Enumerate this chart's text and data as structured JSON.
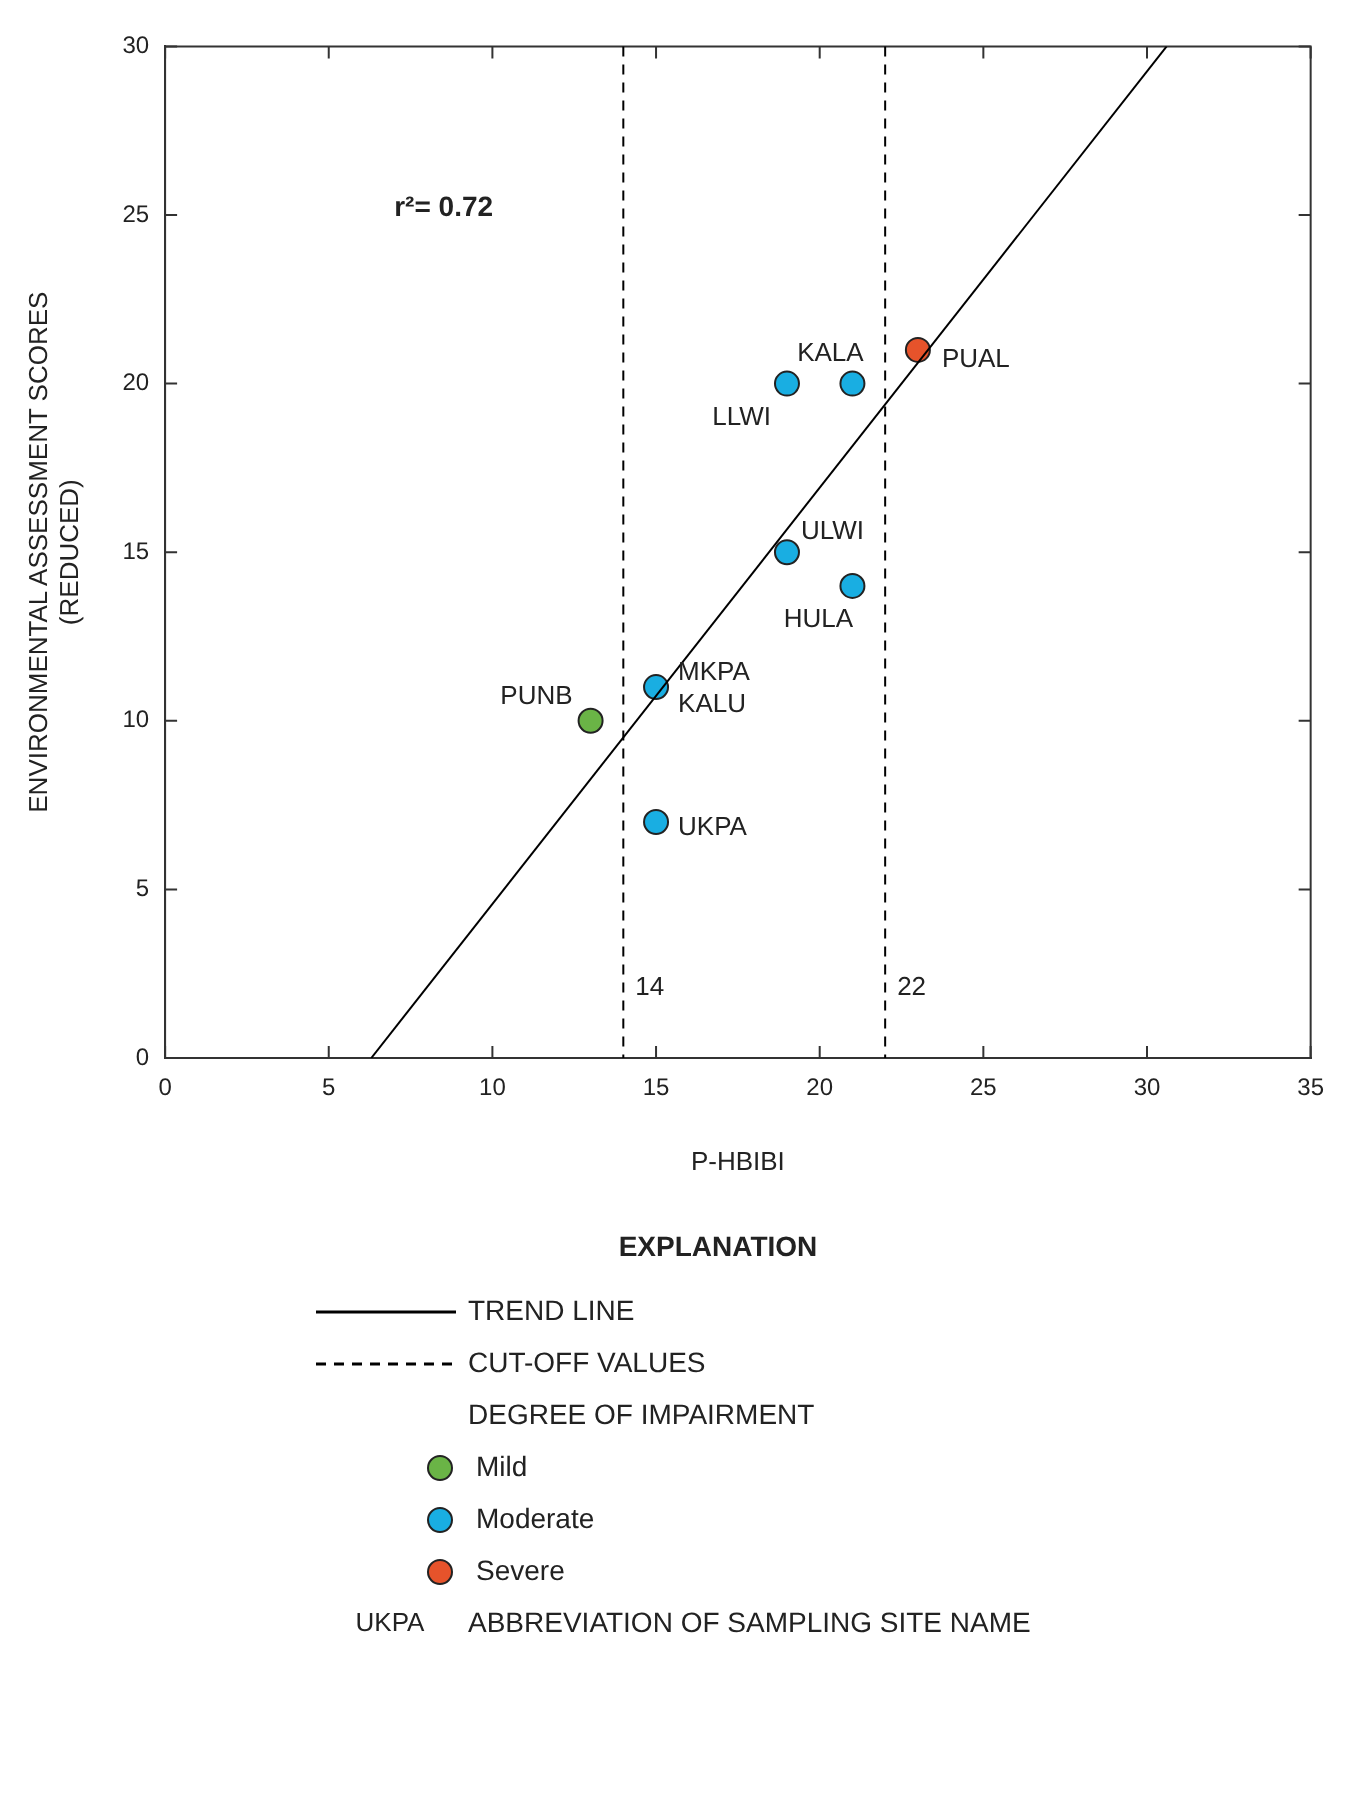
{
  "chart_data": {
    "type": "scatter",
    "xlabel": "P-HBIBI",
    "ylabel": "ENVIRONMENTAL ASSESSMENT SCORES\n(REDUCED)",
    "xlim": [
      0,
      35
    ],
    "xticks": [
      0,
      5,
      10,
      15,
      20,
      25,
      30,
      35
    ],
    "ylim": [
      0,
      30
    ],
    "yticks": [
      0,
      5,
      10,
      15,
      20,
      25,
      30
    ],
    "grid": false,
    "marker": "circle",
    "legend": "bottom",
    "legend_title": "EXPLANATION",
    "series": [
      {
        "name": "TREND LINE",
        "type": "line",
        "color": "#000000",
        "x": [
          6.3,
          30.6
        ],
        "values": [
          0,
          30
        ],
        "line_style": "solid",
        "marker": "none"
      },
      {
        "name": "Mild",
        "type": "scatter",
        "color": "#6ab446",
        "x": [
          13
        ],
        "values": [
          10
        ],
        "value_labels": [
          "PUNB"
        ]
      },
      {
        "name": "Moderate",
        "type": "scatter",
        "color": "#19aee2",
        "x": [
          15,
          15,
          19,
          21,
          19,
          21
        ],
        "values": [
          11,
          7,
          15,
          14,
          20,
          20
        ],
        "value_labels": [
          "MKPA\nKALU",
          "UKPA",
          "ULWI",
          "HULA",
          "LLWI",
          "KALA"
        ]
      },
      {
        "name": "Severe",
        "type": "scatter",
        "color": "#e6532b",
        "x": [
          23
        ],
        "values": [
          21
        ],
        "value_labels": [
          "PUAL"
        ]
      }
    ],
    "ref_lines": [
      {
        "axis": "x",
        "value": 14,
        "label": "14",
        "color": "#000000",
        "line_style": "dashed"
      },
      {
        "axis": "x",
        "value": 22,
        "label": "22",
        "color": "#000000",
        "line_style": "dashed"
      }
    ],
    "annotations": [
      "r²= 0.72",
      "CUT-OFF VALUES",
      "DEGREE OF IMPAIRMENT",
      "UKPA",
      "ABBREVIATION OF SAMPLING SITE NAME"
    ]
  }
}
